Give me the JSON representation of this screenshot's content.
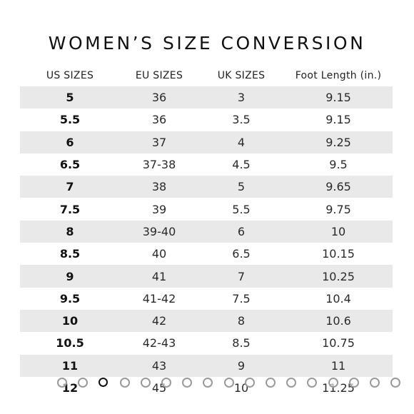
{
  "title": "WOMEN’S SIZE CONVERSION",
  "columns": [
    "US SIZES",
    "EU SIZES",
    "UK SIZES",
    "Foot Length (in.)"
  ],
  "rows": [
    [
      "5",
      "36",
      "3",
      "9.15"
    ],
    [
      "5.5",
      "36",
      "3.5",
      "9.15"
    ],
    [
      "6",
      "37",
      "4",
      "9.25"
    ],
    [
      "6.5",
      "37-38",
      "4.5",
      "9.5"
    ],
    [
      "7",
      "38",
      "5",
      "9.65"
    ],
    [
      "7.5",
      "39",
      "5.5",
      "9.75"
    ],
    [
      "8",
      "39-40",
      "6",
      "10"
    ],
    [
      "8.5",
      "40",
      "6.5",
      "10.15"
    ],
    [
      "9",
      "41",
      "7",
      "10.25"
    ],
    [
      "9.5",
      "41-42",
      "7.5",
      "10.4"
    ],
    [
      "10",
      "42",
      "8",
      "10.6"
    ],
    [
      "10.5",
      "42-43",
      "8.5",
      "10.75"
    ],
    [
      "11",
      "43",
      "9",
      "11"
    ],
    [
      "12",
      "45",
      "10",
      "11.25"
    ]
  ],
  "carousel": {
    "count": 17,
    "active_index": 2
  },
  "colors": {
    "shade": "#e9e9e9",
    "dot": "#9a9a9a",
    "dot_active": "#111111"
  }
}
